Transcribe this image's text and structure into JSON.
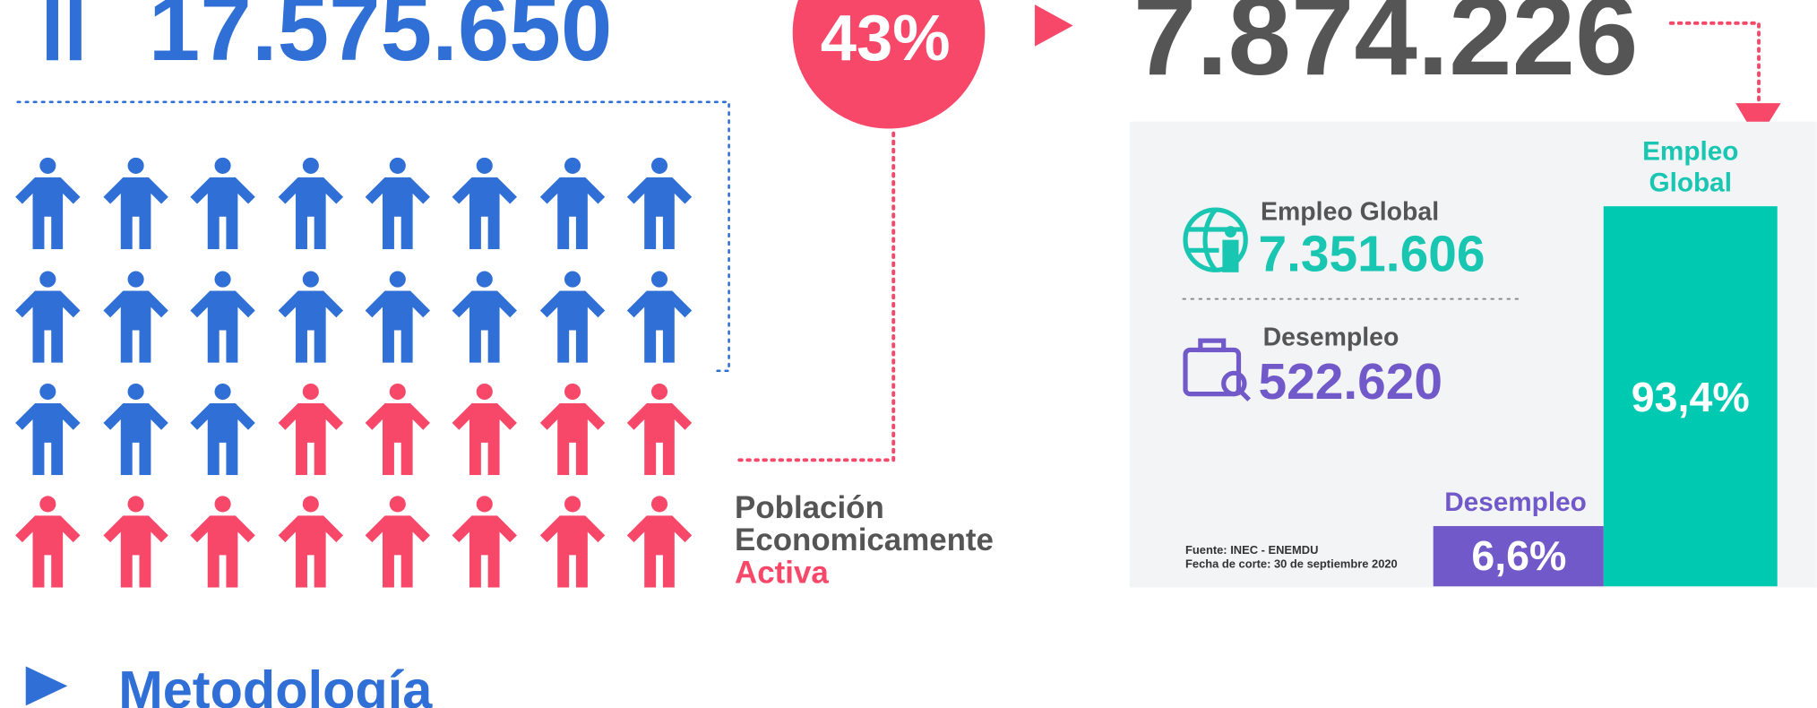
{
  "population": {
    "total": "17.575.650"
  },
  "pea": {
    "percent": "43%",
    "total": "7.874.226",
    "label": [
      "Población",
      "Economicamente",
      "Activa"
    ]
  },
  "breakdown": {
    "employed": {
      "label": "Empleo Global",
      "value": "7.351.606"
    },
    "unemployed": {
      "label": "Desempleo",
      "value": "522.620"
    }
  },
  "bars": {
    "employed": {
      "label": [
        "Empleo",
        "Global"
      ],
      "value": "93,4%"
    },
    "unemployed": {
      "label": "Desempleo",
      "value": "6,6%"
    }
  },
  "source": [
    "Fuente: INEC - ENEMDU",
    "Fecha de corte: 30 de septiembre 2020"
  ],
  "section": {
    "title": "Metodología"
  }
}
